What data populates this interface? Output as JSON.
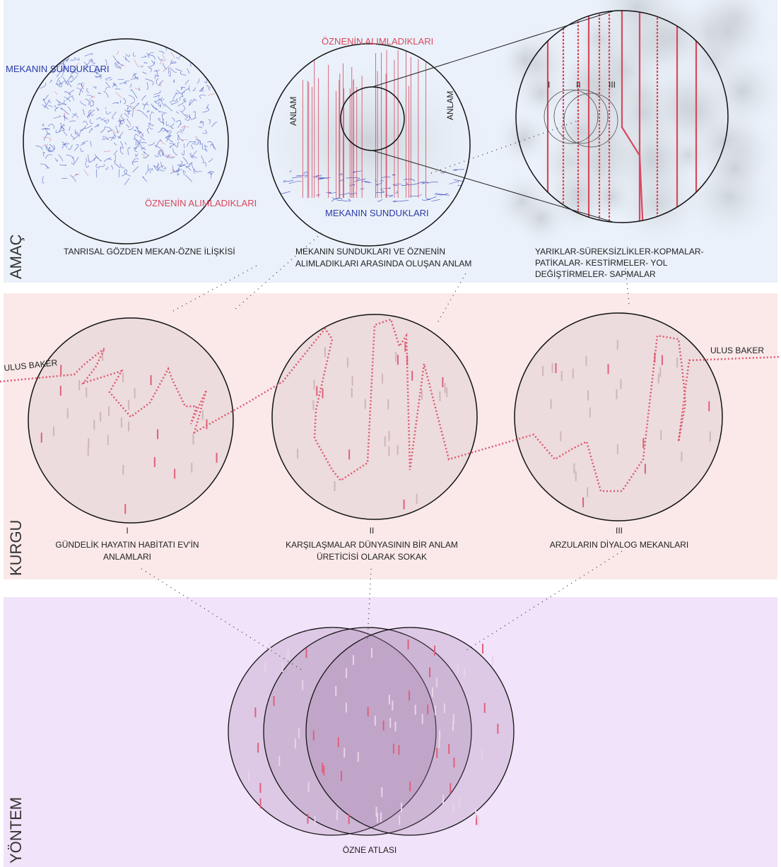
{
  "amac": {
    "label": "AMAÇ",
    "panels": [
      {
        "labels": [
          "MEKANIN SUNDUKLARI",
          "ÖZNENİN ALIMLADIKLARI"
        ],
        "caption": [
          "TANRISAL GÖZDEN MEKAN-ÖZNE İLİŞKİSİ"
        ]
      },
      {
        "labels": [
          "ÖZNENİN ALIMLADIKLARI",
          "ANLAM",
          "ANLAM",
          "MEKANIN SUNDUKLARI"
        ],
        "caption": [
          "MEKANIN SUNDUKLARI VE ÖZNENİN",
          "ALIMLADIKLARI ARASINDA OLUŞAN ANLAM"
        ]
      },
      {
        "labels": [
          "I",
          "II",
          "III"
        ],
        "caption": [
          "YARIKLAR-SÜREKSİZLİKLER-KOPMALAR-",
          "PATİKALAR- KESTİRMELER- YOL",
          "DEĞİŞTİRMELER- SAPMALAR"
        ]
      }
    ]
  },
  "kurgu": {
    "label": "KURGU",
    "path_labels": [
      "ULUS BAKER",
      "ULUS BAKER"
    ],
    "panels": [
      {
        "numeral": "I",
        "caption": [
          "GÜNDELİK HAYATIN HABİTATI EV'İN",
          "ANLAMLARI"
        ]
      },
      {
        "numeral": "II",
        "caption": [
          "KARŞILAŞMALAR DÜNYASININ BİR ANLAM",
          "ÜRETİCİSİ OLARAK SOKAK"
        ]
      },
      {
        "numeral": "III",
        "caption": [
          "ARZULARIN DİYALOG MEKANLARI"
        ]
      }
    ]
  },
  "yontem": {
    "label": "YÖNTEM",
    "caption": "ÖZNE ATLASI"
  }
}
